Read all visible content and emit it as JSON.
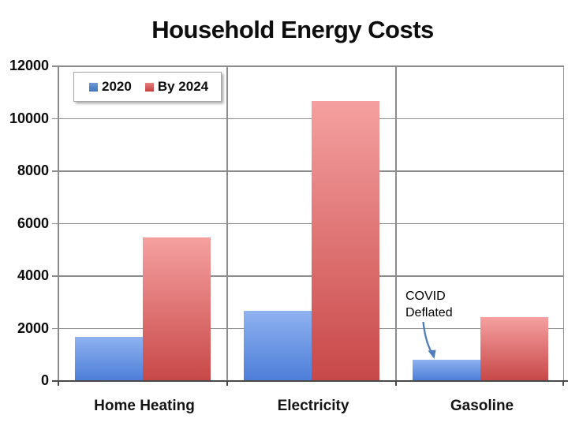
{
  "title": "Household Energy Costs",
  "legend": {
    "items": [
      {
        "label": "2020",
        "color_top": "#6f9ad8",
        "color_bottom": "#3f74b8"
      },
      {
        "label": "By 2024",
        "color_top": "#e87f7f",
        "color_bottom": "#c43e3e"
      }
    ]
  },
  "annotation": {
    "line1": "COVID",
    "line2": "Deflated",
    "arrow_color": "#4f7cba"
  },
  "chart_data": {
    "type": "bar",
    "categories": [
      "Home Heating",
      "Electricity",
      "Gasoline"
    ],
    "series": [
      {
        "name": "2020",
        "values": [
          1650,
          2650,
          780
        ],
        "color_top": "#8fb2f0",
        "color_bottom": "#4d7ed8"
      },
      {
        "name": "By 2024",
        "values": [
          5450,
          10650,
          2400
        ],
        "color_top": "#f5a0a0",
        "color_bottom": "#c84848"
      }
    ],
    "ylim": [
      0,
      12000
    ],
    "ytick_step": 2000,
    "yticks": [
      0,
      2000,
      4000,
      6000,
      8000,
      10000,
      12000
    ],
    "grid": true,
    "legend_position": "top-left",
    "gridline_color": "#8c8c8c",
    "axis_color": "#4a4a4a"
  }
}
